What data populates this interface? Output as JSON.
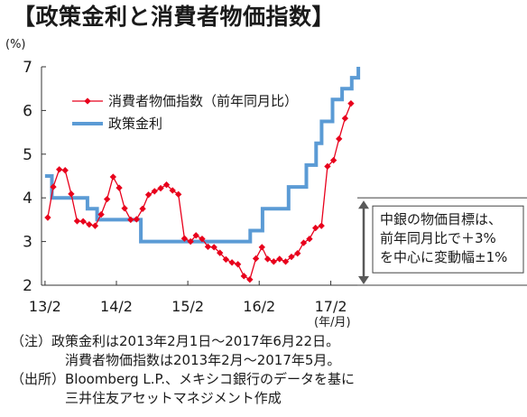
{
  "title": "【政策金利と消費者物価指数】",
  "chart_data": {
    "type": "line",
    "y_unit": "(%)",
    "x_unit": "(年/月)",
    "ylim": [
      2,
      7
    ],
    "y_ticks": [
      "2",
      "3",
      "4",
      "5",
      "6",
      "7"
    ],
    "x_ticks": [
      "13/2",
      "14/2",
      "15/2",
      "16/2",
      "17/2"
    ],
    "grid": false,
    "legend_position": "top-left",
    "series": [
      {
        "name": "消費者物価指数（前年同月比）",
        "style": "line-markers",
        "color": "#e8001c",
        "x": [
          "2013-02",
          "2013-03",
          "2013-04",
          "2013-05",
          "2013-06",
          "2013-07",
          "2013-08",
          "2013-09",
          "2013-10",
          "2013-11",
          "2013-12",
          "2014-01",
          "2014-02",
          "2014-03",
          "2014-04",
          "2014-05",
          "2014-06",
          "2014-07",
          "2014-08",
          "2014-09",
          "2014-10",
          "2014-11",
          "2014-12",
          "2015-01",
          "2015-02",
          "2015-03",
          "2015-04",
          "2015-05",
          "2015-06",
          "2015-07",
          "2015-08",
          "2015-09",
          "2015-10",
          "2015-11",
          "2015-12",
          "2016-01",
          "2016-02",
          "2016-03",
          "2016-04",
          "2016-05",
          "2016-06",
          "2016-07",
          "2016-08",
          "2016-09",
          "2016-10",
          "2016-11",
          "2016-12",
          "2017-01",
          "2017-02",
          "2017-03",
          "2017-04",
          "2017-05"
        ],
        "values": [
          3.55,
          4.25,
          4.65,
          4.63,
          4.09,
          3.47,
          3.46,
          3.39,
          3.36,
          3.62,
          3.97,
          4.48,
          4.23,
          3.76,
          3.5,
          3.51,
          3.75,
          4.07,
          4.15,
          4.22,
          4.3,
          4.17,
          4.08,
          3.07,
          3.0,
          3.14,
          3.06,
          2.88,
          2.87,
          2.74,
          2.59,
          2.52,
          2.48,
          2.21,
          2.13,
          2.61,
          2.87,
          2.6,
          2.54,
          2.6,
          2.54,
          2.65,
          2.73,
          2.97,
          3.06,
          3.31,
          3.36,
          4.72,
          4.86,
          5.35,
          5.82,
          6.16
        ]
      },
      {
        "name": "政策金利",
        "style": "step",
        "color": "#5b9bd5",
        "x": [
          "2013-02-01",
          "2013-03-08",
          "2013-09-06",
          "2013-10-25",
          "2014-06-06",
          "2015-12-17",
          "2016-02-18",
          "2016-03-17",
          "2016-06-30",
          "2016-09-29",
          "2016-11-18",
          "2016-12-16",
          "2017-02-10",
          "2017-03-31",
          "2017-05-19",
          "2017-06-22"
        ],
        "values": [
          4.5,
          4.0,
          3.75,
          3.5,
          3.0,
          3.25,
          3.75,
          3.75,
          4.25,
          4.75,
          5.25,
          5.75,
          6.25,
          6.5,
          6.75,
          7.0
        ]
      }
    ],
    "annotation": {
      "lines": [
        "中銀の物価目標は、",
        "前年同月比で＋3%",
        "を中心に変動幅±1%"
      ],
      "range": [
        2,
        4
      ]
    }
  },
  "notes": [
    "（注）政策金利は2013年2月1日～2017年6月22日。",
    "消費者物価指数は2013年2月～2017年5月。",
    "（出所）Bloomberg L.P.、メキシコ銀行のデータを基に",
    "三井住友アセットマネジメント作成"
  ]
}
